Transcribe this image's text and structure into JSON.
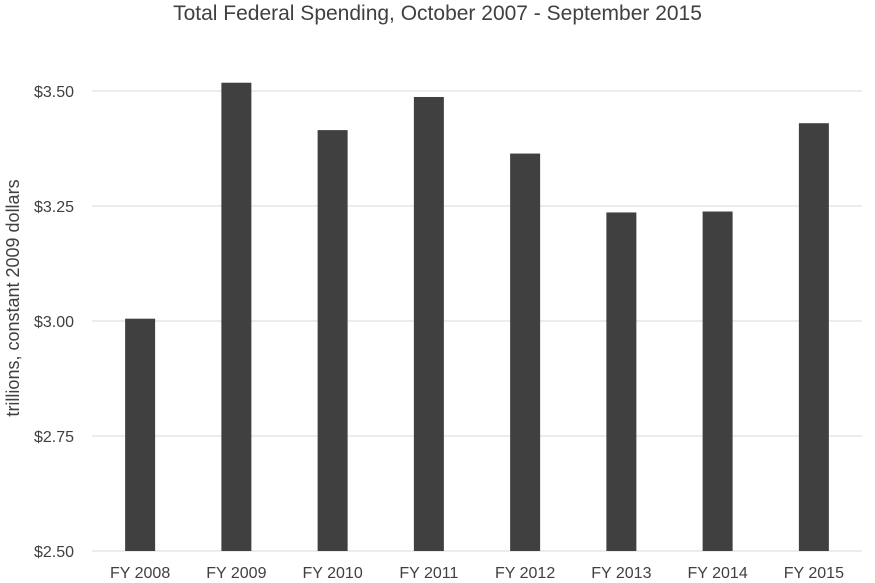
{
  "chart_data": {
    "type": "bar",
    "title": "Total Federal Spending, October 2007 - September 2015",
    "xlabel": "",
    "ylabel": "trillions, constant 2009 dollars",
    "categories": [
      "FY 2008",
      "FY 2009",
      "FY 2010",
      "FY 2011",
      "FY 2012",
      "FY 2013",
      "FY 2014",
      "FY 2015"
    ],
    "values": [
      3.005,
      3.518,
      3.415,
      3.487,
      3.364,
      3.236,
      3.238,
      3.43
    ],
    "ylim": [
      2.5,
      3.5
    ],
    "yticks": [
      {
        "value": 2.5,
        "label": "$2.50"
      },
      {
        "value": 2.75,
        "label": "$2.75"
      },
      {
        "value": 3.0,
        "label": "$3.00"
      },
      {
        "value": 3.25,
        "label": "$3.25"
      },
      {
        "value": 3.5,
        "label": "$3.50"
      }
    ],
    "bar_color": "#404040",
    "grid_color": "#d9d9d9",
    "grid": true,
    "legend": "none"
  }
}
